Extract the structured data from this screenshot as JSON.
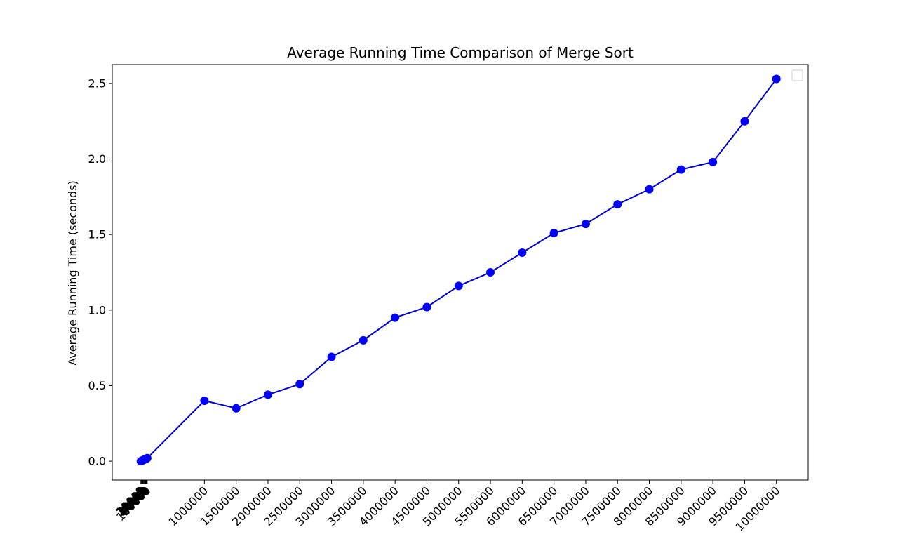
{
  "chart_data": {
    "type": "line",
    "title": "Average Running Time Comparison of Merge Sort",
    "xlabel": "",
    "ylabel": "Average Running Time (seconds)",
    "ylim": [
      -0.125,
      2.625
    ],
    "xlim": [
      -450000,
      10500000
    ],
    "grid": false,
    "legend": "top-right",
    "color": "#0000ff",
    "line_color": "#0000cc",
    "yticks": [
      0.0,
      0.5,
      1.0,
      1.5,
      2.0,
      2.5
    ],
    "ytick_labels": [
      "0.0",
      "0.5",
      "1.0",
      "1.5",
      "2.0",
      "2.5"
    ],
    "xticks": [
      0,
      10000,
      20000,
      30000,
      40000,
      50000,
      60000,
      70000,
      80000,
      90000,
      100000,
      1000000,
      1500000,
      2000000,
      2500000,
      3000000,
      3500000,
      4000000,
      4500000,
      5000000,
      5500000,
      6000000,
      6500000,
      7000000,
      7500000,
      8000000,
      8500000,
      9000000,
      9500000,
      10000000
    ],
    "xtick_labels": [
      "0",
      "10000",
      "20000",
      "30000",
      "40000",
      "50000",
      "60000",
      "70000",
      "80000",
      "90000",
      "100000",
      "1000000",
      "1500000",
      "2000000",
      "2500000",
      "3000000",
      "3500000",
      "4000000",
      "4500000",
      "5000000",
      "5500000",
      "6000000",
      "6500000",
      "7000000",
      "7500000",
      "8000000",
      "8500000",
      "9000000",
      "9500000",
      "10000000"
    ],
    "series": [
      {
        "x": [
          0,
          10000,
          20000,
          30000,
          40000,
          50000,
          60000,
          70000,
          80000,
          90000,
          100000,
          1000000,
          1500000,
          2000000,
          2500000,
          3000000,
          3500000,
          4000000,
          4500000,
          5000000,
          5500000,
          6000000,
          6500000,
          7000000,
          7500000,
          8000000,
          8500000,
          9000000,
          9500000,
          10000000
        ],
        "values": [
          0.0,
          0.002,
          0.004,
          0.006,
          0.008,
          0.01,
          0.012,
          0.014,
          0.016,
          0.018,
          0.02,
          0.4,
          0.35,
          0.44,
          0.51,
          0.69,
          0.8,
          0.95,
          1.02,
          1.16,
          1.25,
          1.38,
          1.51,
          1.57,
          1.7,
          1.8,
          1.93,
          1.98,
          2.25,
          2.53
        ]
      }
    ]
  }
}
